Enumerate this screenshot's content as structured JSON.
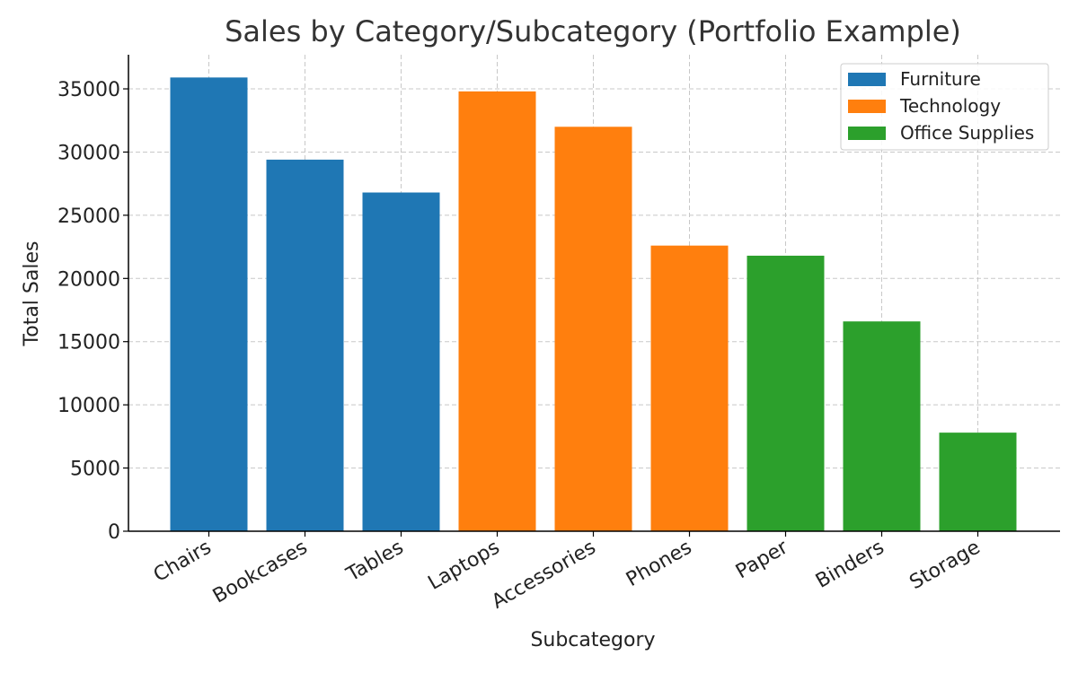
{
  "chart_data": {
    "type": "bar",
    "title": "Sales by Category/Subcategory (Portfolio Example)",
    "xlabel": "Subcategory",
    "ylabel": "Total Sales",
    "categories": [
      "Chairs",
      "Bookcases",
      "Tables",
      "Laptops",
      "Accessories",
      "Phones",
      "Paper",
      "Binders",
      "Storage"
    ],
    "values": [
      35900,
      29400,
      26800,
      34800,
      32000,
      22600,
      21800,
      16600,
      7800
    ],
    "category_group": [
      "Furniture",
      "Furniture",
      "Furniture",
      "Technology",
      "Technology",
      "Technology",
      "Office Supplies",
      "Office Supplies",
      "Office Supplies"
    ],
    "groups": [
      {
        "name": "Furniture",
        "color": "#1f77b4"
      },
      {
        "name": "Technology",
        "color": "#ff7f0e"
      },
      {
        "name": "Office Supplies",
        "color": "#2ca02c"
      }
    ],
    "ylim": [
      0,
      37700
    ],
    "yticks": [
      0,
      5000,
      10000,
      15000,
      20000,
      25000,
      30000,
      35000
    ],
    "grid": true,
    "legend_position": "top-right"
  }
}
